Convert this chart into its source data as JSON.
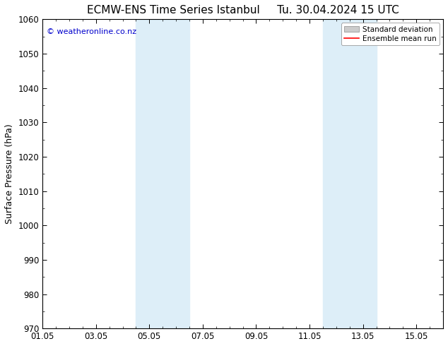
{
  "title": "ECMW-ENS Time Series Istanbul",
  "title_right": "Tu. 30.04.2024 15 UTC",
  "ylabel": "Surface Pressure (hPa)",
  "ylim": [
    970,
    1060
  ],
  "yticks": [
    970,
    980,
    990,
    1000,
    1010,
    1020,
    1030,
    1040,
    1050,
    1060
  ],
  "xtick_labels": [
    "01.05",
    "03.05",
    "05.05",
    "07.05",
    "09.05",
    "11.05",
    "13.05",
    "15.05"
  ],
  "xtick_positions": [
    0,
    2,
    4,
    6,
    8,
    10,
    12,
    14
  ],
  "xlim": [
    0,
    15
  ],
  "shaded_bands": [
    {
      "x_start": 3.5,
      "x_end": 4.5,
      "color": "#ddeef8"
    },
    {
      "x_start": 4.5,
      "x_end": 5.5,
      "color": "#ddeef8"
    },
    {
      "x_start": 10.5,
      "x_end": 11.5,
      "color": "#ddeef8"
    },
    {
      "x_start": 11.5,
      "x_end": 12.5,
      "color": "#ddeef8"
    }
  ],
  "copyright_text": "© weatheronline.co.nz",
  "copyright_color": "#0000cc",
  "legend_std_label": "Standard deviation",
  "legend_mean_label": "Ensemble mean run",
  "legend_std_color": "#cccccc",
  "legend_mean_color": "#ff0000",
  "background_color": "#ffffff",
  "plot_bg_color": "#ffffff",
  "font_color": "#000000",
  "title_fontsize": 11,
  "axis_fontsize": 9,
  "tick_fontsize": 8.5,
  "border_color": "#000000"
}
